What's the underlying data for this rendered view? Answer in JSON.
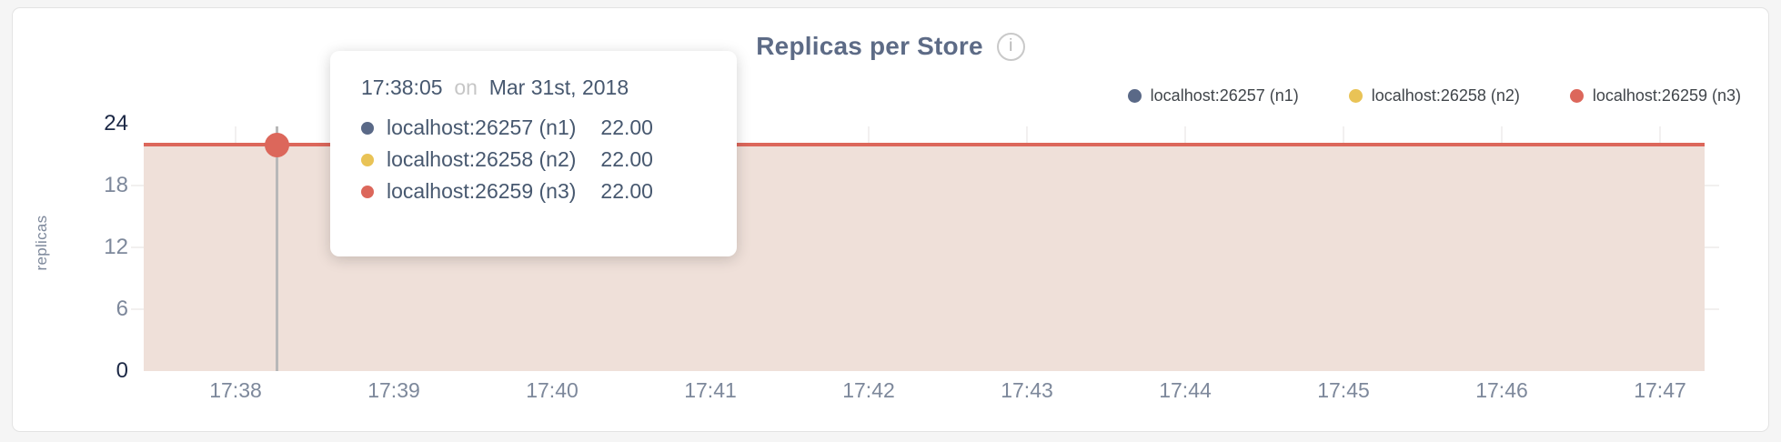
{
  "page": {
    "background": "#f5f5f5",
    "panel_background": "#ffffff",
    "panel_border": "#e3e3e3"
  },
  "header": {
    "title": "Replicas per Store",
    "info_icon_glyph": "i"
  },
  "chart_data": {
    "type": "area",
    "title": "Replicas per Store",
    "xlabel": "",
    "ylabel": "replicas",
    "x_ticks": [
      "17:38",
      "17:39",
      "17:40",
      "17:41",
      "17:42",
      "17:43",
      "17:44",
      "17:45",
      "17:46",
      "17:47"
    ],
    "y_ticks": [
      0,
      6,
      12,
      18,
      24
    ],
    "ylim": [
      0,
      24
    ],
    "grid": true,
    "legend_position": "top-right",
    "series": [
      {
        "name": "localhost:26257 (n1)",
        "color": "#5a6987",
        "value": 22
      },
      {
        "name": "localhost:26258 (n2)",
        "color": "#e9c356",
        "value": 22
      },
      {
        "name": "localhost:26259 (n3)",
        "color": "#dc675b",
        "value": 22
      }
    ],
    "series_behavior": "all three series constant at 22 replicas from 17:38 to 17:47",
    "area_fill_color": "#efe0d9",
    "line_color": "#dc675b"
  },
  "tooltip": {
    "time": "17:38:05",
    "conjunction": "on",
    "date": "Mar 31st, 2018",
    "rows": [
      {
        "label": "localhost:26257 (n1)",
        "value": "22.00",
        "color": "#5a6987"
      },
      {
        "label": "localhost:26258 (n2)",
        "value": "22.00",
        "color": "#e9c356"
      },
      {
        "label": "localhost:26259 (n3)",
        "value": "22.00",
        "color": "#dc675b"
      }
    ]
  },
  "hover": {
    "dot_color": "#dc675b",
    "guideline_color": "#b8b8b8"
  }
}
